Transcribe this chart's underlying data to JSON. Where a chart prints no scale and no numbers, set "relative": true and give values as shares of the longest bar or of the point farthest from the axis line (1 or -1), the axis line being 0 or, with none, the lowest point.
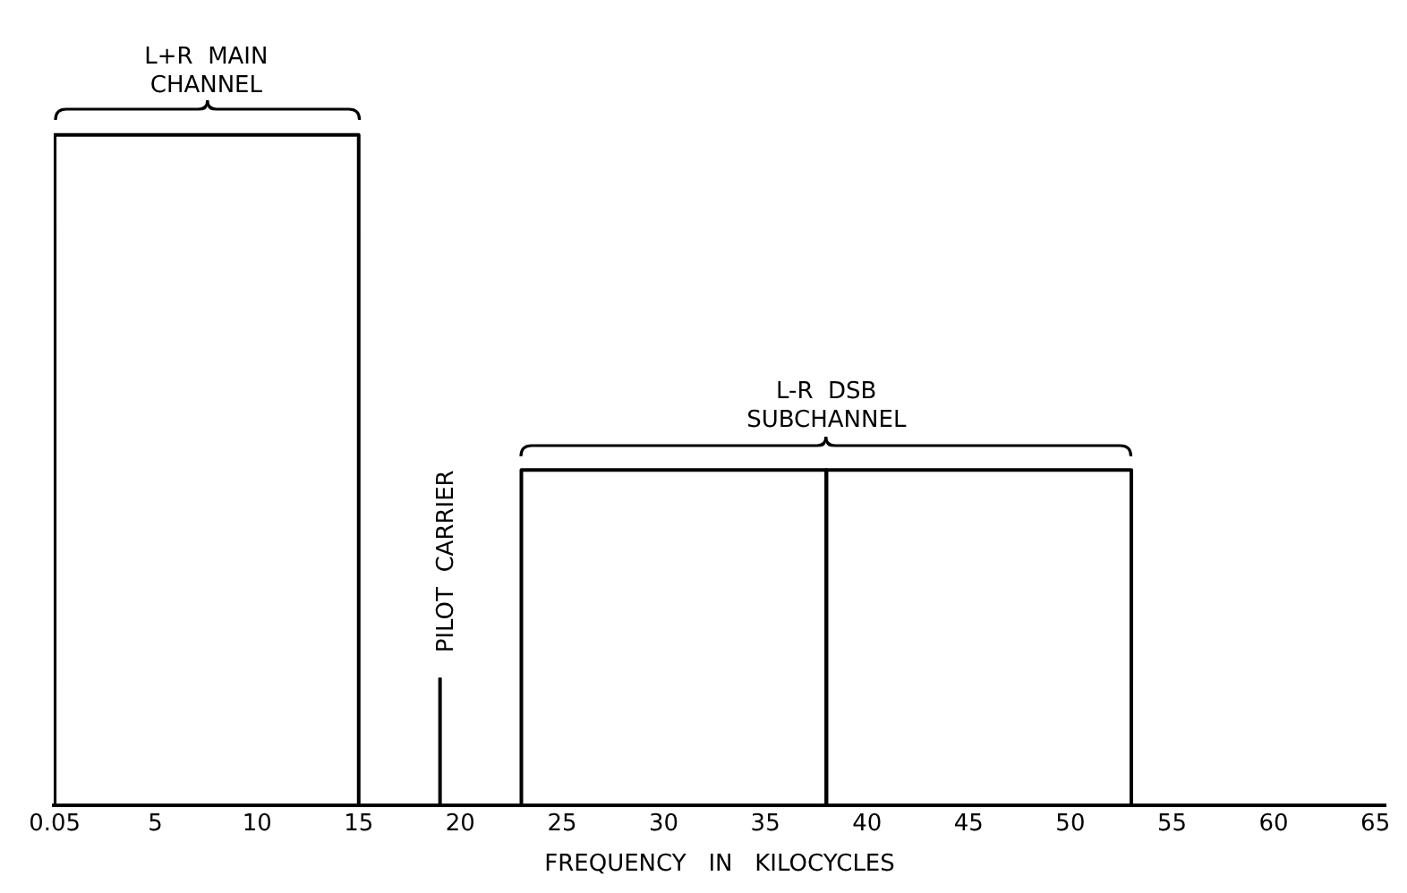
{
  "chart_data": {
    "type": "histogram",
    "relative": true,
    "xlabel": "FREQUENCY   IN   KILOCYCLES",
    "xlim": [
      0,
      65.5
    ],
    "xticks": [
      0.05,
      5,
      10,
      15,
      20,
      25,
      30,
      35,
      40,
      45,
      50,
      55,
      60,
      65
    ],
    "grid": false,
    "legend": false,
    "series": [
      {
        "color": "#000000",
        "bins": [
          0.05,
          15,
          23,
          38,
          53
        ],
        "values": [
          1,
          null,
          0.5,
          0.5
        ]
      },
      {
        "type": "line",
        "color": "#000000",
        "x": [
          19,
          19
        ],
        "values": [
          0,
          0.19
        ]
      }
    ],
    "annotations": [
      {
        "text": "L+R  MAIN\nCHANNEL",
        "x": 7.5,
        "y": 1
      },
      {
        "text": "PILOT  CARRIER",
        "x": 19,
        "y": 0.19
      },
      {
        "text": "L-R  DSB\nSUBCHANNEL",
        "x": 38,
        "y": 0.5
      }
    ]
  }
}
